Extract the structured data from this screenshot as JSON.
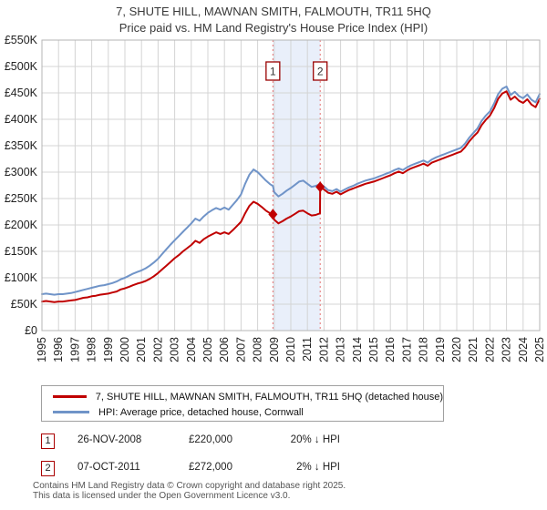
{
  "title": {
    "line1": "7, SHUTE HILL, MAWNAN SMITH, FALMOUTH, TR11 5HQ",
    "line2": "Price paid vs. HM Land Registry's House Price Index (HPI)"
  },
  "colors": {
    "price_line": "#c00000",
    "hpi_line": "#7094c8",
    "grid": "#d4d4d4",
    "plot_border": "#b4b4b4",
    "sale_band_fill": "#e9effa",
    "sale_dash_line": "#e57373",
    "marker_box_border": "#990000",
    "axis_text": "#222222"
  },
  "legend": {
    "items": [
      {
        "label": "7, SHUTE HILL, MAWNAN SMITH, FALMOUTH, TR11 5HQ (detached house)",
        "color": "#c00000"
      },
      {
        "label": "HPI: Average price, detached house, Cornwall",
        "color": "#7094c8"
      }
    ]
  },
  "transactions": [
    {
      "num": "1",
      "date": "26-NOV-2008",
      "price": "£220,000",
      "hpi_diff": "20% ↓ HPI"
    },
    {
      "num": "2",
      "date": "07-OCT-2011",
      "price": "£272,000",
      "hpi_diff": "2% ↓ HPI"
    }
  ],
  "footer": {
    "line1": "Contains HM Land Registry data © Crown copyright and database right 2025.",
    "line2": "This data is licensed under the Open Government Licence v3.0."
  },
  "chart_data": {
    "type": "line",
    "title": "Price paid vs. HPI, 1995-2025",
    "units": "GBP_thousands",
    "x_range": [
      1995,
      2025
    ],
    "y_range_k": [
      0,
      550
    ],
    "grid": true,
    "legend_position": "bottom",
    "x_ticks": [
      1995,
      1996,
      1997,
      1998,
      1999,
      2000,
      2001,
      2002,
      2003,
      2004,
      2005,
      2006,
      2007,
      2008,
      2009,
      2010,
      2011,
      2012,
      2013,
      2014,
      2015,
      2016,
      2017,
      2018,
      2019,
      2020,
      2021,
      2022,
      2023,
      2024,
      2025
    ],
    "y_tick_labels": [
      "£0",
      "£50K",
      "£100K",
      "£150K",
      "£200K",
      "£250K",
      "£300K",
      "£350K",
      "£400K",
      "£450K",
      "£500K",
      "£550K"
    ],
    "shaded_region_x": [
      2008.92,
      2011.77
    ],
    "markers": [
      {
        "label": "1",
        "x": 2008.92,
        "y": 220,
        "date": "26-NOV-2008",
        "price_k": 220,
        "vs_hpi": "20% below HPI"
      },
      {
        "label": "2",
        "x": 2011.77,
        "y": 272,
        "date": "07-OCT-2011",
        "price_k": 272,
        "vs_hpi": "2% below HPI"
      }
    ],
    "series": [
      {
        "name": "hpi",
        "label": "HPI: Average price, detached house, Cornwall",
        "color": "#7094c8",
        "points": [
          [
            1995,
            69
          ],
          [
            1995.25,
            70
          ],
          [
            1995.5,
            69
          ],
          [
            1995.75,
            68
          ],
          [
            1996,
            69
          ],
          [
            1996.25,
            69
          ],
          [
            1996.5,
            70
          ],
          [
            1996.75,
            71
          ],
          [
            1997,
            73
          ],
          [
            1997.25,
            75
          ],
          [
            1997.5,
            77
          ],
          [
            1997.75,
            79
          ],
          [
            1998,
            81
          ],
          [
            1998.25,
            83
          ],
          [
            1998.5,
            85
          ],
          [
            1998.75,
            86
          ],
          [
            1999,
            88
          ],
          [
            1999.25,
            90
          ],
          [
            1999.5,
            93
          ],
          [
            1999.75,
            97
          ],
          [
            2000,
            100
          ],
          [
            2000.25,
            104
          ],
          [
            2000.5,
            108
          ],
          [
            2000.75,
            111
          ],
          [
            2001,
            114
          ],
          [
            2001.25,
            118
          ],
          [
            2001.5,
            123
          ],
          [
            2001.75,
            129
          ],
          [
            2002,
            136
          ],
          [
            2002.25,
            145
          ],
          [
            2002.5,
            154
          ],
          [
            2002.75,
            163
          ],
          [
            2003,
            171
          ],
          [
            2003.25,
            179
          ],
          [
            2003.5,
            187
          ],
          [
            2003.75,
            195
          ],
          [
            2004,
            203
          ],
          [
            2004.25,
            212
          ],
          [
            2004.5,
            208
          ],
          [
            2004.75,
            216
          ],
          [
            2005,
            223
          ],
          [
            2005.25,
            228
          ],
          [
            2005.5,
            232
          ],
          [
            2005.75,
            229
          ],
          [
            2006,
            233
          ],
          [
            2006.25,
            229
          ],
          [
            2006.5,
            238
          ],
          [
            2006.75,
            247
          ],
          [
            2007,
            258
          ],
          [
            2007.25,
            278
          ],
          [
            2007.5,
            295
          ],
          [
            2007.75,
            305
          ],
          [
            2008,
            300
          ],
          [
            2008.25,
            292
          ],
          [
            2008.5,
            284
          ],
          [
            2008.75,
            277
          ],
          [
            2008.92,
            274
          ],
          [
            2009,
            262
          ],
          [
            2009.25,
            254
          ],
          [
            2009.5,
            259
          ],
          [
            2009.75,
            265
          ],
          [
            2010,
            270
          ],
          [
            2010.25,
            276
          ],
          [
            2010.5,
            282
          ],
          [
            2010.75,
            284
          ],
          [
            2011,
            278
          ],
          [
            2011.25,
            272
          ],
          [
            2011.5,
            274
          ],
          [
            2011.77,
            277
          ],
          [
            2012,
            273
          ],
          [
            2012.25,
            266
          ],
          [
            2012.5,
            264
          ],
          [
            2012.75,
            268
          ],
          [
            2013,
            263
          ],
          [
            2013.25,
            267
          ],
          [
            2013.5,
            271
          ],
          [
            2013.75,
            274
          ],
          [
            2014,
            278
          ],
          [
            2014.25,
            281
          ],
          [
            2014.5,
            284
          ],
          [
            2014.75,
            286
          ],
          [
            2015,
            288
          ],
          [
            2015.25,
            291
          ],
          [
            2015.5,
            294
          ],
          [
            2015.75,
            297
          ],
          [
            2016,
            300
          ],
          [
            2016.25,
            304
          ],
          [
            2016.5,
            307
          ],
          [
            2016.75,
            304
          ],
          [
            2017,
            309
          ],
          [
            2017.25,
            313
          ],
          [
            2017.5,
            316
          ],
          [
            2017.75,
            319
          ],
          [
            2018,
            322
          ],
          [
            2018.25,
            318
          ],
          [
            2018.5,
            324
          ],
          [
            2018.75,
            328
          ],
          [
            2019,
            331
          ],
          [
            2019.25,
            334
          ],
          [
            2019.5,
            337
          ],
          [
            2019.75,
            340
          ],
          [
            2020,
            343
          ],
          [
            2020.25,
            346
          ],
          [
            2020.5,
            354
          ],
          [
            2020.75,
            365
          ],
          [
            2021,
            374
          ],
          [
            2021.25,
            383
          ],
          [
            2021.5,
            397
          ],
          [
            2021.75,
            407
          ],
          [
            2022,
            415
          ],
          [
            2022.25,
            430
          ],
          [
            2022.5,
            448
          ],
          [
            2022.75,
            458
          ],
          [
            2023,
            462
          ],
          [
            2023.25,
            446
          ],
          [
            2023.5,
            452
          ],
          [
            2023.75,
            444
          ],
          [
            2024,
            440
          ],
          [
            2024.25,
            447
          ],
          [
            2024.5,
            437
          ],
          [
            2024.75,
            432
          ],
          [
            2025,
            448
          ]
        ]
      },
      {
        "name": "price_paid",
        "label": "7, SHUTE HILL, MAWNAN SMITH, FALMOUTH, TR11 5HQ (detached house)",
        "color": "#c00000",
        "points": [
          [
            1995,
            55
          ],
          [
            1995.25,
            56
          ],
          [
            1995.5,
            55
          ],
          [
            1995.75,
            54
          ],
          [
            1996,
            55
          ],
          [
            1996.25,
            55
          ],
          [
            1996.5,
            56
          ],
          [
            1996.75,
            57
          ],
          [
            1997,
            58
          ],
          [
            1997.25,
            60
          ],
          [
            1997.5,
            62
          ],
          [
            1997.75,
            63
          ],
          [
            1998,
            65
          ],
          [
            1998.25,
            66
          ],
          [
            1998.5,
            68
          ],
          [
            1998.75,
            69
          ],
          [
            1999,
            70
          ],
          [
            1999.25,
            72
          ],
          [
            1999.5,
            74
          ],
          [
            1999.75,
            78
          ],
          [
            2000,
            80
          ],
          [
            2000.25,
            83
          ],
          [
            2000.5,
            86
          ],
          [
            2000.75,
            89
          ],
          [
            2001,
            91
          ],
          [
            2001.25,
            94
          ],
          [
            2001.5,
            98
          ],
          [
            2001.75,
            103
          ],
          [
            2002,
            109
          ],
          [
            2002.25,
            116
          ],
          [
            2002.5,
            123
          ],
          [
            2002.75,
            130
          ],
          [
            2003,
            137
          ],
          [
            2003.25,
            143
          ],
          [
            2003.5,
            150
          ],
          [
            2003.75,
            156
          ],
          [
            2004,
            162
          ],
          [
            2004.25,
            170
          ],
          [
            2004.5,
            166
          ],
          [
            2004.75,
            173
          ],
          [
            2005,
            178
          ],
          [
            2005.25,
            182
          ],
          [
            2005.5,
            186
          ],
          [
            2005.75,
            183
          ],
          [
            2006,
            186
          ],
          [
            2006.25,
            183
          ],
          [
            2006.5,
            190
          ],
          [
            2006.75,
            198
          ],
          [
            2007,
            206
          ],
          [
            2007.25,
            222
          ],
          [
            2007.5,
            236
          ],
          [
            2007.75,
            244
          ],
          [
            2008,
            240
          ],
          [
            2008.25,
            234
          ],
          [
            2008.5,
            227
          ],
          [
            2008.75,
            222
          ],
          [
            2008.92,
            220
          ],
          [
            2009,
            210
          ],
          [
            2009.25,
            203
          ],
          [
            2009.5,
            207
          ],
          [
            2009.75,
            212
          ],
          [
            2010,
            216
          ],
          [
            2010.25,
            221
          ],
          [
            2010.5,
            226
          ],
          [
            2010.75,
            227
          ],
          [
            2011,
            222
          ],
          [
            2011.25,
            218
          ],
          [
            2011.5,
            219
          ],
          [
            2011.76,
            222
          ],
          [
            2011.77,
            272
          ],
          [
            2012,
            267
          ],
          [
            2012.25,
            261
          ],
          [
            2012.5,
            259
          ],
          [
            2012.75,
            263
          ],
          [
            2013,
            258
          ],
          [
            2013.25,
            262
          ],
          [
            2013.5,
            266
          ],
          [
            2013.75,
            269
          ],
          [
            2014,
            272
          ],
          [
            2014.25,
            275
          ],
          [
            2014.5,
            278
          ],
          [
            2014.75,
            280
          ],
          [
            2015,
            282
          ],
          [
            2015.25,
            285
          ],
          [
            2015.5,
            288
          ],
          [
            2015.75,
            291
          ],
          [
            2016,
            294
          ],
          [
            2016.25,
            298
          ],
          [
            2016.5,
            301
          ],
          [
            2016.75,
            298
          ],
          [
            2017,
            303
          ],
          [
            2017.25,
            307
          ],
          [
            2017.5,
            310
          ],
          [
            2017.75,
            313
          ],
          [
            2018,
            316
          ],
          [
            2018.25,
            312
          ],
          [
            2018.5,
            318
          ],
          [
            2018.75,
            321
          ],
          [
            2019,
            324
          ],
          [
            2019.25,
            327
          ],
          [
            2019.5,
            330
          ],
          [
            2019.75,
            333
          ],
          [
            2020,
            336
          ],
          [
            2020.25,
            339
          ],
          [
            2020.5,
            347
          ],
          [
            2020.75,
            358
          ],
          [
            2021,
            367
          ],
          [
            2021.25,
            375
          ],
          [
            2021.5,
            389
          ],
          [
            2021.75,
            399
          ],
          [
            2022,
            407
          ],
          [
            2022.25,
            421
          ],
          [
            2022.5,
            439
          ],
          [
            2022.75,
            449
          ],
          [
            2023,
            453
          ],
          [
            2023.25,
            437
          ],
          [
            2023.5,
            443
          ],
          [
            2023.75,
            435
          ],
          [
            2024,
            431
          ],
          [
            2024.25,
            438
          ],
          [
            2024.5,
            428
          ],
          [
            2024.75,
            423
          ],
          [
            2025,
            439
          ]
        ]
      }
    ]
  }
}
